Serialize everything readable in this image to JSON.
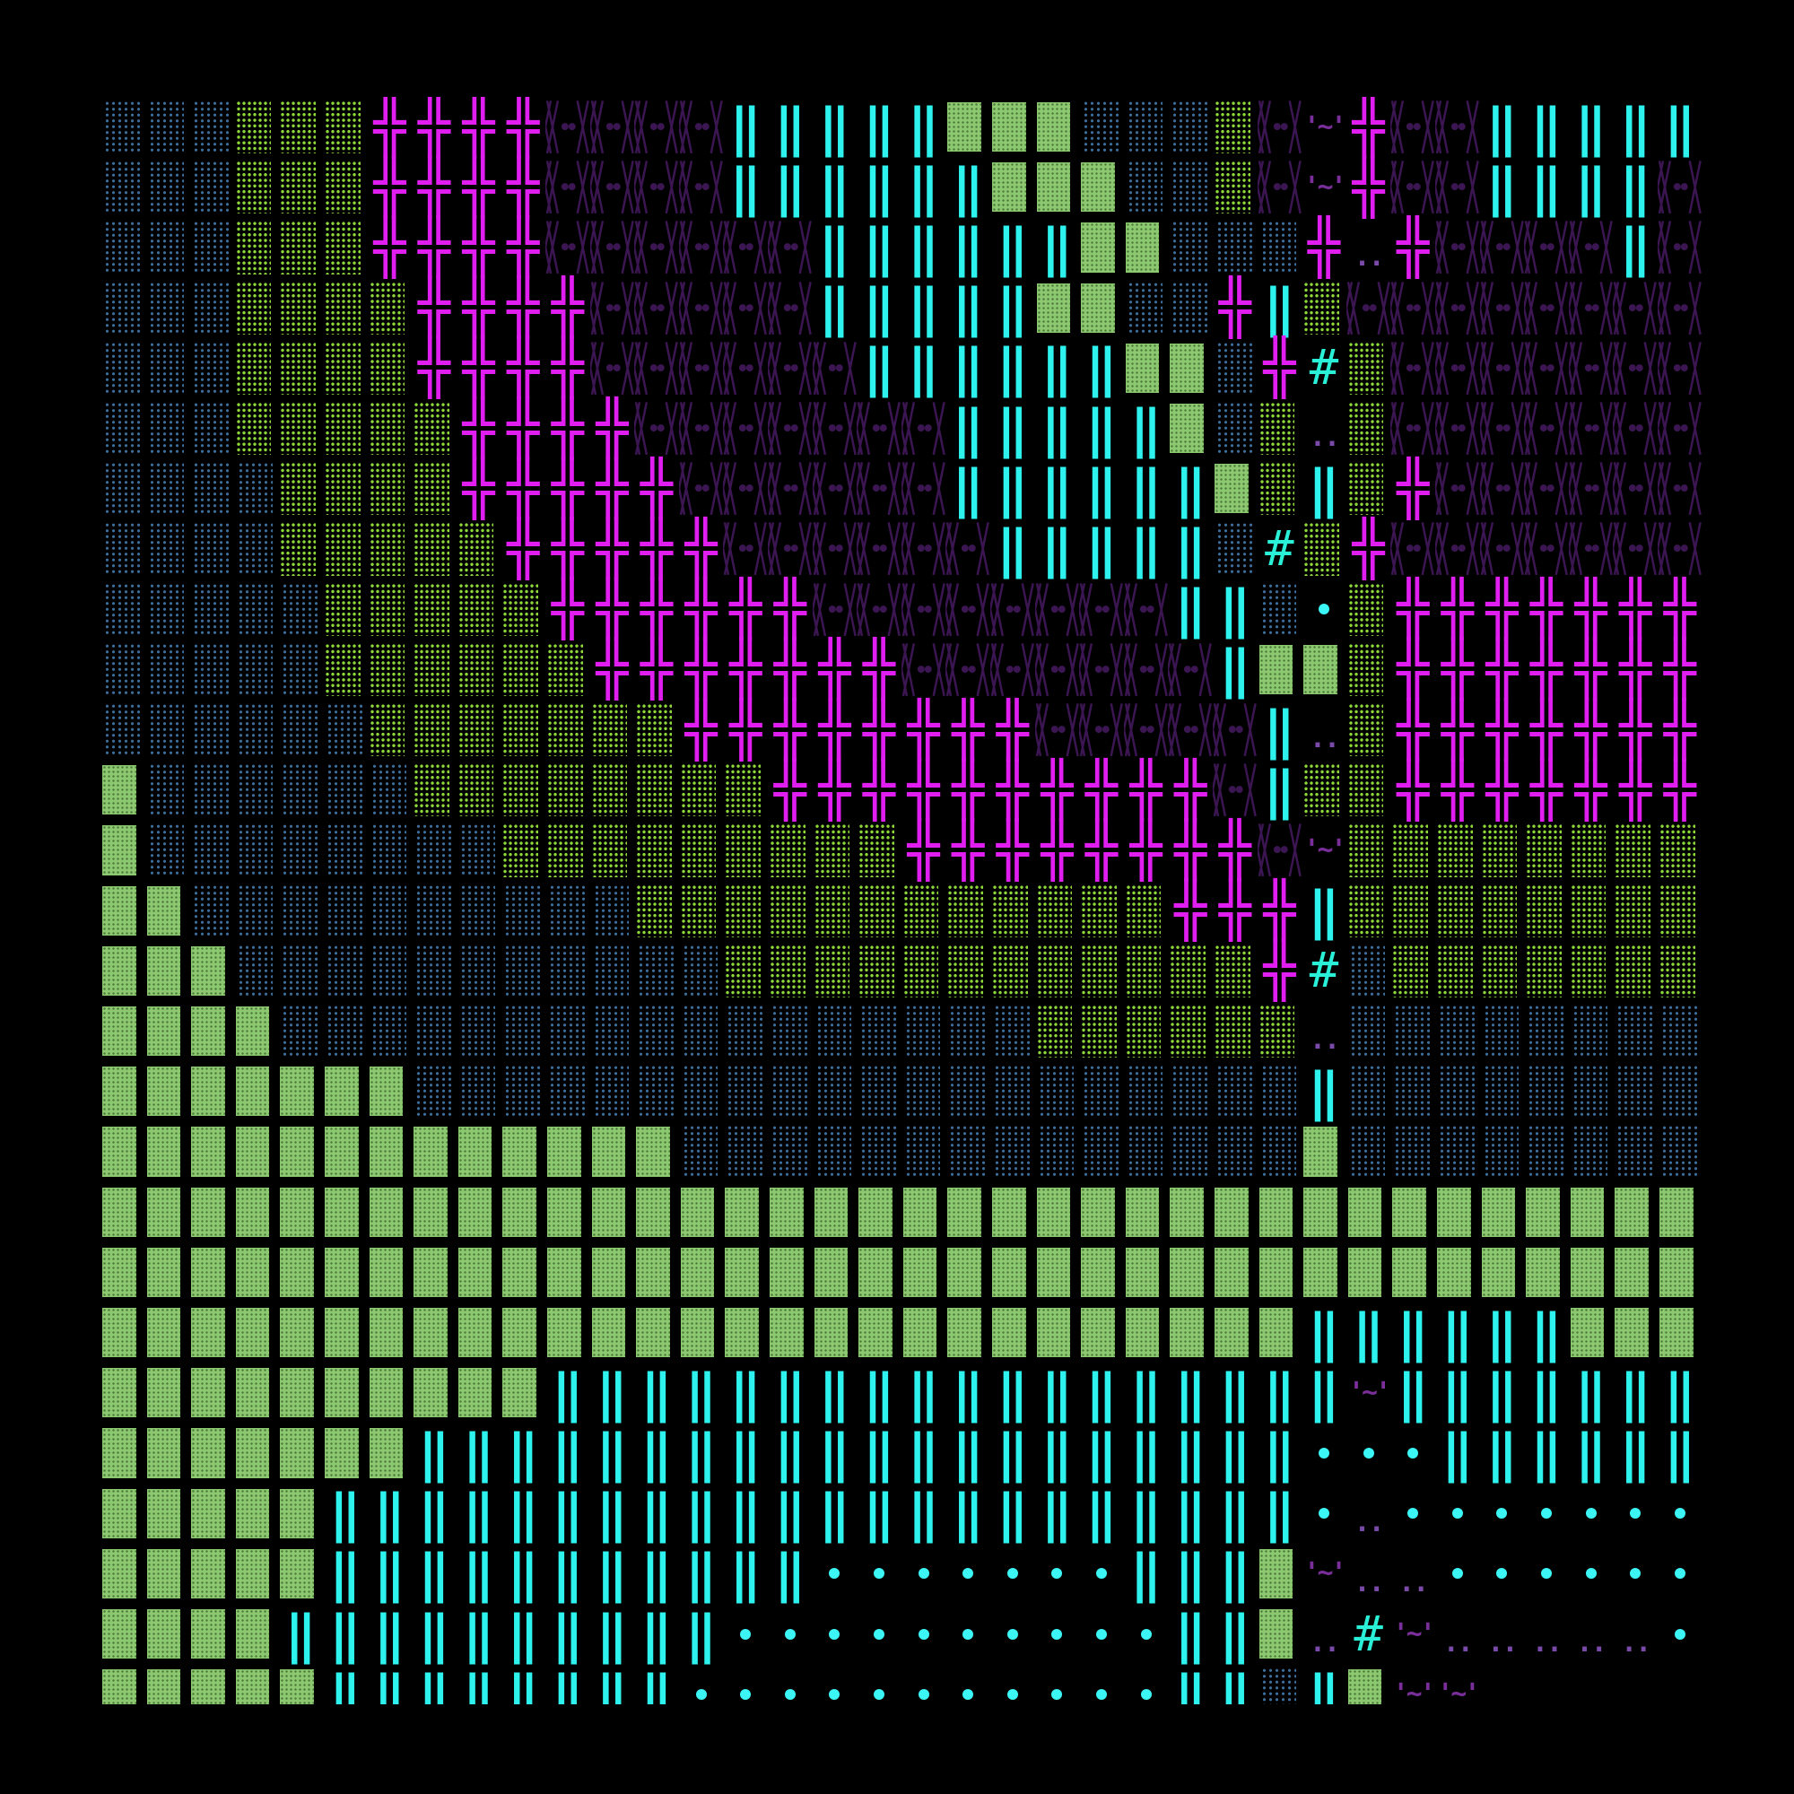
{
  "glyphs": {
    "x": "╬",
    "c": "‖",
    "h": "#",
    "t": "'~'",
    "p": ".."
  },
  "colors": {
    "background": "#000000",
    "b": "#3d6f9c",
    "g": "#8ed83a",
    "G": "#8cc870",
    "x": "#e01ef0",
    "v": "#3c1652",
    "c": "#2ef2ee",
    "o": "#3cf5f5",
    "h": "#2af0d8",
    "t": "#7a2e9a",
    "p": "#7a4aa8"
  },
  "grid": [
    "bbbgggxxxxvvvvcccccGGGbbbgvtxvvccccc",
    "bbbgggxxxxvvvvccccccGGGbbgvtxvvccccv",
    "bbbgggxxxxvvvvvvccccccGGbbbxpxvvvvcv",
    "bbbggggxxxxvvvvvcccccGGbbxcgvvvvvvvv",
    "bbbggggxxxxvvvvvvccccccGGbxhgvvvvvvv",
    "bbbgggggxxxxvvvvvvvcccccGbgpgvvvvvvv",
    "bbbbggggxxxxxvvvvvvccccccGgcgxvvvvvv",
    "bbbbgggggxxxxxvvvvvvcccccbhgxvvvvvvv",
    "bbbbbgggggxxxxxxvvvvvvvvccbogxxxxxxx",
    "bbbbbggggggxxxxxxxvvvvvvvcGGgxxxxxxx",
    "bbbbbbgggggggxxxxxxxxvvvvvcpgxxxxxxx",
    "Gbbbbbbggggggggxxxxxxxxxxvcggxxxxxxx",
    "Gbbbbbbbbgggggggggxxxxxxxxvtgggggggg",
    "GGbbbbbbbbbbggggggggggggxxxcgggggggg",
    "GGGbbbbbbbbbbbggggggggggggxhbggggggg",
    "GGGGbbbbbbbbbbbbbbbbbggggggpbbbbbbbb",
    "GGGGGGGbbbbbbbbbbbbbbbbbbbbcbbbbbbbb",
    "GGGGGGGGGGGGGbbbbbbbbbbbbbbGbbbbbbbb",
    "GGGGGGGGGGGGGGGGGGGGGGGGGGGGGGGGGGGG",
    "GGGGGGGGGGGGGGGGGGGGGGGGGGGGGGGGGGGG",
    "GGGGGGGGGGGGGGGGGGGGGGGGGGGccccccGGG",
    "GGGGGGGGGGcccccccccccccccccctcccccccc",
    "GGGGGGGccccccccccccccccccccoooccccccc",
    "GGGGGccccccccccccccccccccccopooooooo",
    "GGGGGcccccccccccooooooocccGtppoooooo",
    "GGGGccccccccccooooooooooccGphtpppppo",
    "GGGGGccccccccoooooooooooccbcGtt....."
  ]
}
